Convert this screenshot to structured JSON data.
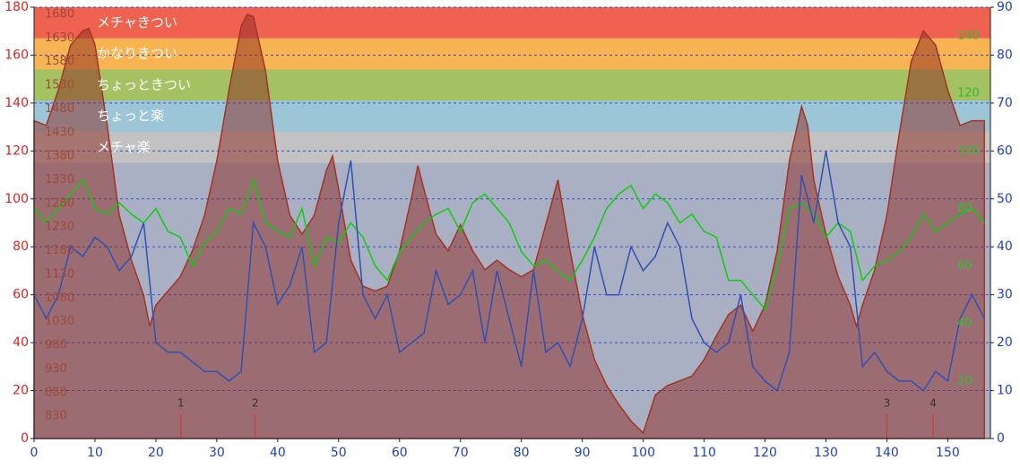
{
  "chart_data": {
    "type": "line",
    "xlim": [
      0,
      157
    ],
    "xticks": [
      0,
      10,
      20,
      30,
      40,
      50,
      60,
      70,
      80,
      90,
      100,
      110,
      120,
      130,
      140,
      150
    ],
    "ylim": [
      0,
      180
    ],
    "yticks": [
      0,
      20,
      40,
      60,
      80,
      100,
      120,
      140,
      160,
      180
    ],
    "y2lim": [
      0,
      90
    ],
    "y2ticks": [
      0,
      10,
      20,
      30,
      40,
      50,
      60,
      70,
      80,
      90
    ],
    "elevation_lim": [
      783,
      1695
    ],
    "elevation_ticks": [
      830,
      880,
      930,
      980,
      1030,
      1080,
      1130,
      1180,
      1230,
      1280,
      1330,
      1380,
      1430,
      1480,
      1530,
      1580,
      1630,
      1680
    ],
    "cadence_lim": [
      0,
      150
    ],
    "cadence_ticks": [
      20,
      40,
      60,
      80,
      100,
      120,
      140
    ],
    "grid": true,
    "zones": [
      {
        "name": "メチャきつい",
        "from": 167,
        "to": 180,
        "color": "#f06250"
      },
      {
        "name": "かなりきつい",
        "from": 154,
        "to": 167,
        "color": "#f8b452"
      },
      {
        "name": "ちょっときつい",
        "from": 141,
        "to": 154,
        "color": "#a4c262"
      },
      {
        "name": "ちょっと楽",
        "from": 128,
        "to": 141,
        "color": "#9cc6d8"
      },
      {
        "name": "メチャ楽",
        "from": 115,
        "to": 128,
        "color": "#c2c2c2"
      }
    ],
    "markers": [
      {
        "label": "1",
        "x": 24.1
      },
      {
        "label": "2",
        "x": 36.3
      },
      {
        "label": "3",
        "x": 140
      },
      {
        "label": "4",
        "x": 147.6
      }
    ],
    "series": [
      {
        "axis": "elevation",
        "color": "#a03525",
        "x": [
          0,
          2,
          4,
          6,
          8,
          9,
          10,
          12,
          14,
          16,
          18,
          19,
          20,
          22,
          24,
          26,
          28,
          30,
          32,
          34,
          35,
          36,
          38,
          40,
          42,
          44,
          46,
          48,
          49,
          50,
          52,
          54,
          56,
          58,
          60,
          62,
          63,
          64,
          66,
          68,
          70,
          72,
          74,
          76,
          78,
          80,
          82,
          84,
          86,
          88,
          90,
          92,
          94,
          96,
          98,
          100,
          102,
          104,
          106,
          108,
          110,
          112,
          114,
          116,
          118,
          120,
          122,
          124,
          126,
          127,
          128,
          130,
          132,
          134,
          135,
          136,
          138,
          140,
          142,
          144,
          146,
          148,
          150,
          152,
          154,
          156
        ],
        "values": [
          1455,
          1445,
          1520,
          1615,
          1645,
          1650,
          1615,
          1445,
          1255,
          1160,
          1085,
          1020,
          1065,
          1095,
          1125,
          1180,
          1255,
          1370,
          1520,
          1655,
          1680,
          1675,
          1560,
          1370,
          1255,
          1215,
          1255,
          1350,
          1380,
          1310,
          1160,
          1105,
          1095,
          1105,
          1180,
          1295,
          1360,
          1310,
          1215,
          1180,
          1235,
          1180,
          1140,
          1160,
          1140,
          1125,
          1140,
          1235,
          1330,
          1180,
          1045,
          950,
          895,
          855,
          820,
          795,
          875,
          895,
          905,
          915,
          950,
          1000,
          1045,
          1065,
          1010,
          1065,
          1180,
          1370,
          1485,
          1445,
          1330,
          1215,
          1125,
          1065,
          1020,
          1065,
          1140,
          1255,
          1425,
          1580,
          1645,
          1615,
          1520,
          1445,
          1455,
          1455
        ]
      },
      {
        "axis": "cadence",
        "color": "#10cc10",
        "x": [
          0,
          2,
          4,
          6,
          8,
          10,
          12,
          14,
          16,
          18,
          20,
          22,
          24,
          26,
          28,
          30,
          32,
          34,
          36,
          38,
          40,
          42,
          44,
          46,
          48,
          50,
          52,
          54,
          56,
          58,
          60,
          62,
          64,
          66,
          68,
          70,
          72,
          74,
          76,
          78,
          80,
          82,
          84,
          86,
          88,
          90,
          92,
          94,
          96,
          98,
          100,
          102,
          104,
          106,
          108,
          110,
          112,
          114,
          116,
          118,
          120,
          122,
          124,
          126,
          128,
          130,
          132,
          134,
          136,
          138,
          140,
          142,
          144,
          146,
          148,
          150,
          152,
          154,
          156
        ],
        "values": [
          80,
          75,
          80,
          85,
          90,
          80,
          78,
          82,
          78,
          75,
          80,
          72,
          70,
          60,
          68,
          72,
          80,
          78,
          90,
          75,
          72,
          70,
          80,
          60,
          70,
          68,
          75,
          70,
          60,
          55,
          65,
          70,
          75,
          78,
          80,
          72,
          82,
          85,
          80,
          75,
          65,
          60,
          62,
          58,
          55,
          62,
          70,
          80,
          85,
          88,
          80,
          85,
          82,
          75,
          78,
          72,
          70,
          55,
          55,
          50,
          45,
          60,
          80,
          82,
          78,
          70,
          75,
          72,
          55,
          60,
          62,
          65,
          70,
          78,
          72,
          75,
          78,
          80,
          75
        ]
      },
      {
        "axis": "y2",
        "color": "#3050b4",
        "x": [
          0,
          2,
          4,
          6,
          8,
          10,
          12,
          14,
          16,
          18,
          20,
          22,
          24,
          26,
          28,
          30,
          32,
          34,
          36,
          38,
          40,
          42,
          44,
          46,
          48,
          50,
          52,
          54,
          56,
          58,
          60,
          62,
          64,
          66,
          68,
          70,
          72,
          74,
          76,
          78,
          80,
          82,
          84,
          86,
          88,
          90,
          92,
          94,
          96,
          98,
          100,
          102,
          104,
          106,
          108,
          110,
          112,
          114,
          116,
          118,
          120,
          122,
          124,
          126,
          128,
          130,
          132,
          134,
          136,
          138,
          140,
          142,
          144,
          146,
          148,
          150,
          152,
          154,
          156
        ],
        "values": [
          30,
          25,
          30,
          40,
          38,
          42,
          40,
          35,
          38,
          45,
          20,
          18,
          18,
          16,
          14,
          14,
          12,
          14,
          45,
          40,
          28,
          32,
          40,
          18,
          20,
          45,
          58,
          30,
          25,
          30,
          18,
          20,
          22,
          35,
          28,
          30,
          35,
          20,
          35,
          25,
          15,
          35,
          18,
          20,
          15,
          25,
          40,
          30,
          30,
          40,
          35,
          38,
          45,
          40,
          25,
          20,
          18,
          20,
          30,
          15,
          12,
          10,
          18,
          55,
          45,
          60,
          45,
          40,
          15,
          18,
          14,
          12,
          12,
          10,
          14,
          12,
          25,
          30,
          25
        ]
      }
    ]
  }
}
